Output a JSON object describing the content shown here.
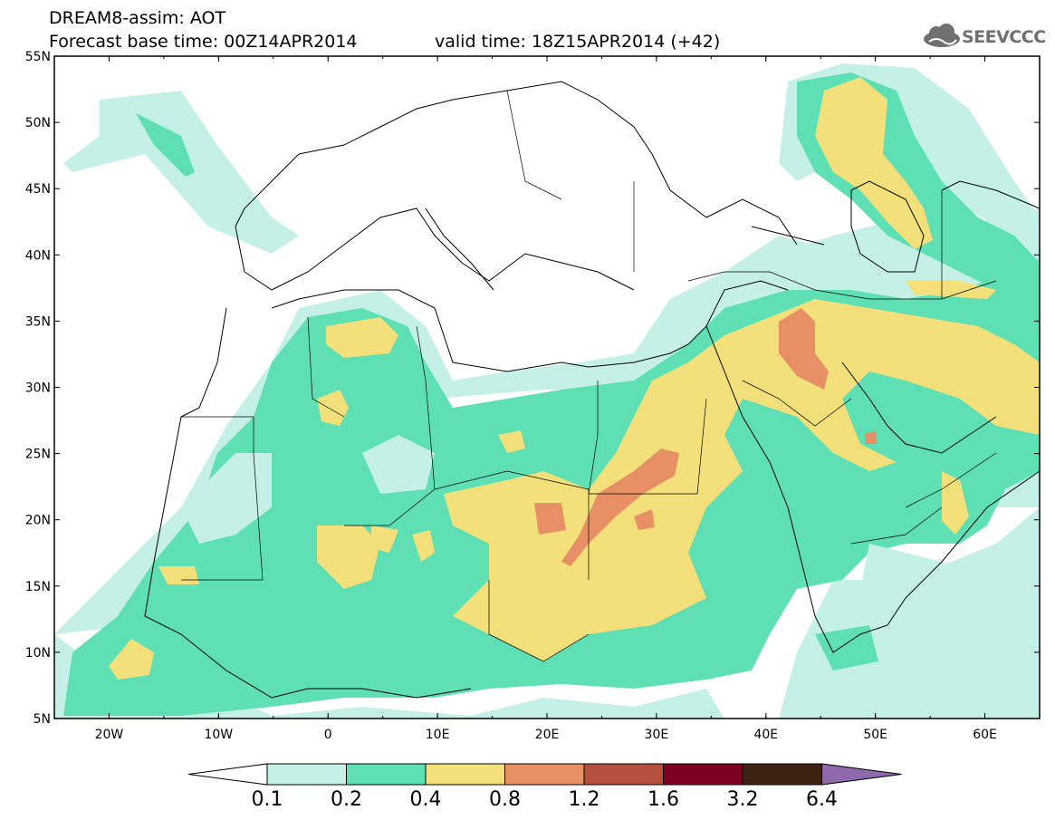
{
  "header": {
    "title_line1": "DREAM8-assim: AOT",
    "title_line2": "Forecast base time: 00Z14APR2014",
    "valid_time": "valid time: 18Z15APR2014 (+42)",
    "logo_text": "SEEVCCC"
  },
  "map": {
    "lat_labels": [
      "55N",
      "50N",
      "45N",
      "40N",
      "35N",
      "30N",
      "25N",
      "20N",
      "15N",
      "10N",
      "5N"
    ],
    "lon_labels": [
      "20W",
      "10W",
      "0",
      "10E",
      "20E",
      "30E",
      "40E",
      "50E",
      "60E"
    ],
    "lon_range": [
      -25,
      65
    ],
    "lat_range": [
      5,
      55
    ],
    "background_color": "#ffffff",
    "coastline_color": "#000000"
  },
  "legend": {
    "labels": [
      "0.1",
      "0.2",
      "0.4",
      "0.8",
      "1.2",
      "1.6",
      "3.2",
      "6.4"
    ],
    "colors": [
      "#ffffff",
      "#c4f0e8",
      "#5fe0b4",
      "#f3e07a",
      "#e79065",
      "#b5503f",
      "#7d0020",
      "#3d2412",
      "#8e6aac"
    ]
  }
}
